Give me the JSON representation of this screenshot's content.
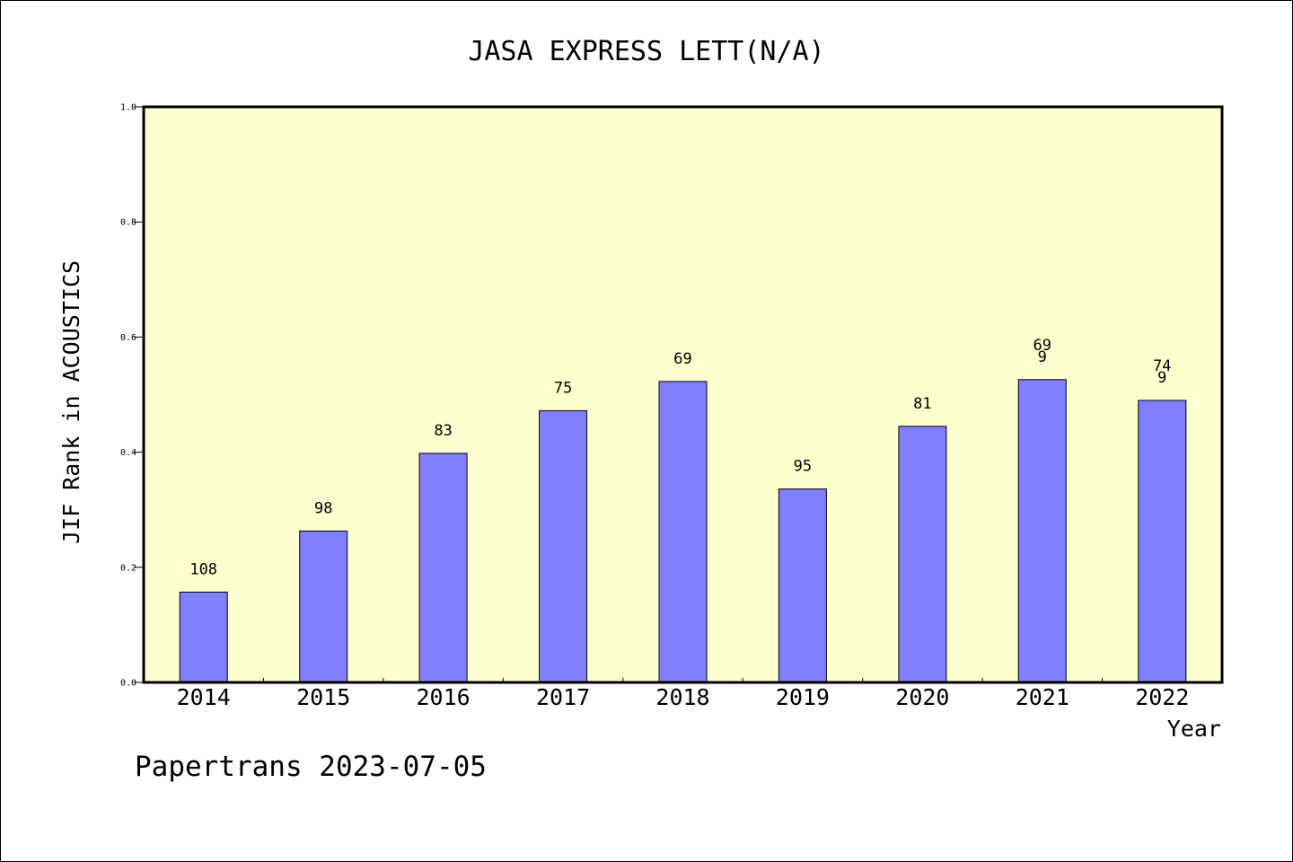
{
  "chart_data": {
    "type": "bar",
    "title": "JASA EXPRESS LETT(N/A)",
    "xlabel": "Year",
    "ylabel": "JIF Rank in ACOUSTICS",
    "categories": [
      "2014",
      "2015",
      "2016",
      "2017",
      "2018",
      "2019",
      "2020",
      "2021",
      "2022"
    ],
    "values": [
      0.157,
      0.263,
      0.398,
      0.472,
      0.523,
      0.336,
      0.445,
      0.526,
      0.49
    ],
    "data_labels": [
      [
        "108"
      ],
      [
        "98"
      ],
      [
        "83"
      ],
      [
        "75"
      ],
      [
        "69"
      ],
      [
        "95"
      ],
      [
        "81"
      ],
      [
        "69",
        "9"
      ],
      [
        "74",
        "9"
      ]
    ],
    "ylim": [
      0,
      1.0
    ],
    "yticks": [
      "0.0",
      "0.2",
      "0.4",
      "0.6",
      "0.8",
      "1.0"
    ],
    "grid": false,
    "legend": "none",
    "colors": {
      "plot_background": "#ffffd0",
      "bar_fill": "#8080ff",
      "bar_stroke": "#000000"
    }
  },
  "footer": {
    "text": "Papertrans 2023-07-05"
  }
}
